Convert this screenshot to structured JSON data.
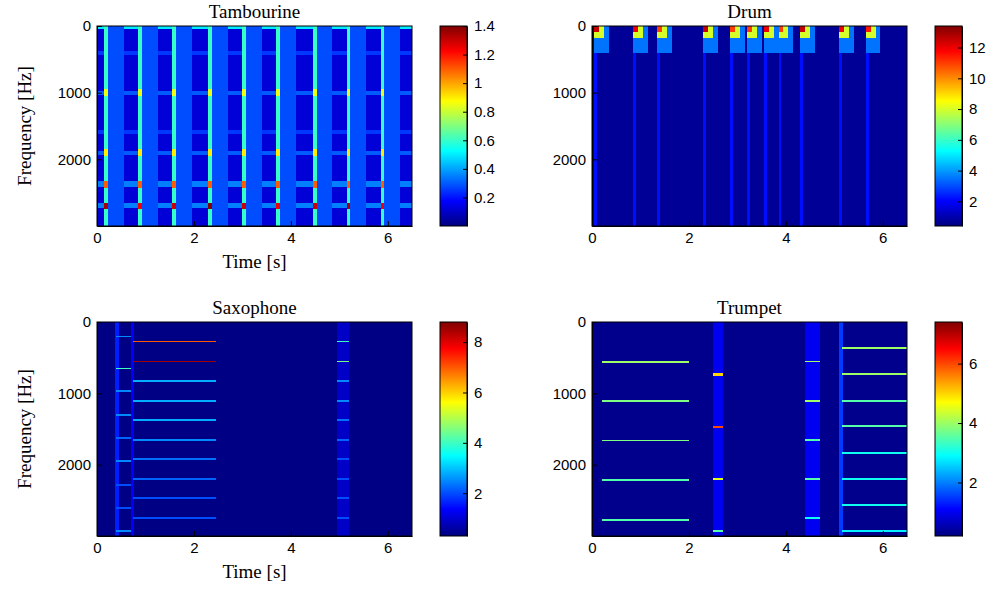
{
  "chart_data": [
    {
      "type": "heatmap",
      "title": "Tambourine",
      "xlabel": "Time [s]",
      "ylabel": "Frequency [Hz]",
      "xlim": [
        0,
        6.5
      ],
      "xticks": [
        0,
        2,
        4,
        6
      ],
      "ylim": [
        0,
        3000
      ],
      "yticks": [
        0,
        1000,
        2000
      ],
      "colorbar": {
        "range": [
          0,
          1.4
        ],
        "ticks": [
          0.2,
          0.4,
          0.6,
          0.8,
          1,
          1.2,
          1.4
        ]
      },
      "background": 0.12,
      "cells": [
        [
          0,
          6.5,
          0,
          40,
          0.5
        ],
        [
          0,
          6.5,
          380,
          430,
          0.25
        ],
        [
          0,
          6.5,
          980,
          1040,
          0.3
        ],
        [
          0,
          6.5,
          1560,
          1620,
          0.25
        ],
        [
          0,
          6.5,
          1880,
          1940,
          0.3
        ],
        [
          0,
          6.5,
          2330,
          2420,
          0.35
        ],
        [
          0,
          6.5,
          2650,
          2730,
          0.35
        ],
        [
          0.15,
          0.55,
          0,
          3000,
          0.28
        ],
        [
          0.15,
          0.23,
          0,
          3000,
          0.6
        ],
        [
          0.15,
          0.23,
          950,
          1050,
          0.85
        ],
        [
          0.15,
          0.23,
          1850,
          1950,
          0.9
        ],
        [
          0.15,
          0.23,
          2330,
          2430,
          1.1
        ],
        [
          0.15,
          0.23,
          2650,
          2750,
          1.35
        ],
        [
          0.85,
          1.25,
          0,
          3000,
          0.28
        ],
        [
          0.85,
          0.93,
          0,
          3000,
          0.6
        ],
        [
          0.85,
          0.93,
          950,
          1050,
          0.85
        ],
        [
          0.85,
          0.93,
          1850,
          1950,
          0.9
        ],
        [
          0.85,
          0.93,
          2330,
          2430,
          1.1
        ],
        [
          0.85,
          0.93,
          2650,
          2750,
          1.25
        ],
        [
          1.55,
          1.95,
          0,
          3000,
          0.28
        ],
        [
          1.55,
          1.63,
          0,
          3000,
          0.6
        ],
        [
          1.55,
          1.63,
          950,
          1050,
          0.85
        ],
        [
          1.55,
          1.63,
          1850,
          1950,
          0.9
        ],
        [
          1.55,
          1.63,
          2330,
          2430,
          1.1
        ],
        [
          1.55,
          1.63,
          2650,
          2750,
          1.3
        ],
        [
          2.3,
          2.7,
          0,
          3000,
          0.28
        ],
        [
          2.3,
          2.38,
          0,
          3000,
          0.6
        ],
        [
          2.3,
          2.38,
          950,
          1050,
          0.85
        ],
        [
          2.3,
          2.38,
          1850,
          1950,
          0.9
        ],
        [
          2.3,
          2.38,
          2330,
          2430,
          1.1
        ],
        [
          2.3,
          2.38,
          2650,
          2750,
          1.4
        ],
        [
          3.0,
          3.4,
          0,
          3000,
          0.28
        ],
        [
          3.0,
          3.08,
          0,
          3000,
          0.6
        ],
        [
          3.0,
          3.08,
          950,
          1050,
          0.85
        ],
        [
          3.0,
          3.08,
          1850,
          1950,
          0.9
        ],
        [
          3.0,
          3.08,
          2330,
          2430,
          1.1
        ],
        [
          3.0,
          3.08,
          2650,
          2750,
          1.3
        ],
        [
          3.7,
          4.1,
          0,
          3000,
          0.28
        ],
        [
          3.7,
          3.78,
          0,
          3000,
          0.6
        ],
        [
          3.7,
          3.78,
          950,
          1050,
          0.85
        ],
        [
          3.7,
          3.78,
          1850,
          1950,
          0.9
        ],
        [
          3.7,
          3.78,
          2330,
          2430,
          1.1
        ],
        [
          3.7,
          3.78,
          2650,
          2750,
          1.25
        ],
        [
          4.45,
          4.85,
          0,
          3000,
          0.28
        ],
        [
          4.45,
          4.53,
          0,
          3000,
          0.6
        ],
        [
          4.45,
          4.53,
          950,
          1050,
          0.85
        ],
        [
          4.45,
          4.53,
          1850,
          1950,
          0.9
        ],
        [
          4.45,
          4.53,
          2330,
          2430,
          1.1
        ],
        [
          4.45,
          4.53,
          2650,
          2750,
          1.3
        ],
        [
          5.15,
          5.55,
          0,
          3000,
          0.28
        ],
        [
          5.15,
          5.23,
          0,
          3000,
          0.6
        ],
        [
          5.15,
          5.23,
          950,
          1050,
          0.85
        ],
        [
          5.15,
          5.23,
          1850,
          1950,
          0.9
        ],
        [
          5.15,
          5.23,
          2330,
          2430,
          1.1
        ],
        [
          5.15,
          5.23,
          2650,
          2750,
          1.35
        ],
        [
          5.85,
          6.25,
          0,
          3000,
          0.28
        ],
        [
          5.85,
          5.93,
          0,
          3000,
          0.6
        ],
        [
          5.85,
          5.93,
          950,
          1050,
          0.85
        ],
        [
          5.85,
          5.93,
          1850,
          1950,
          0.9
        ],
        [
          5.85,
          5.93,
          2330,
          2430,
          1.1
        ],
        [
          5.85,
          5.93,
          2650,
          2750,
          1.25
        ]
      ]
    },
    {
      "type": "heatmap",
      "title": "Drum",
      "xlim": [
        0,
        6.5
      ],
      "xticks": [
        0,
        2,
        4,
        6
      ],
      "ylim": [
        0,
        3000
      ],
      "yticks": [
        0,
        1000,
        2000
      ],
      "colorbar": {
        "range": [
          0.4,
          13.4
        ],
        "ticks": [
          2,
          4,
          6,
          8,
          10,
          12
        ]
      },
      "background": 0.7,
      "cells": [
        [
          0.05,
          0.11,
          0,
          3000,
          2.2
        ],
        [
          0.05,
          0.35,
          0,
          400,
          3.5
        ],
        [
          0.05,
          0.25,
          0,
          180,
          8
        ],
        [
          0.05,
          0.15,
          0,
          90,
          12.5
        ],
        [
          0.85,
          0.91,
          0,
          3000,
          2.2
        ],
        [
          0.85,
          1.15,
          0,
          400,
          3.5
        ],
        [
          0.85,
          1.05,
          0,
          180,
          8
        ],
        [
          0.85,
          0.95,
          0,
          90,
          12
        ],
        [
          1.35,
          1.41,
          0,
          3000,
          2.2
        ],
        [
          1.35,
          1.65,
          0,
          400,
          3.5
        ],
        [
          1.35,
          1.55,
          0,
          180,
          8
        ],
        [
          1.35,
          1.45,
          0,
          90,
          11
        ],
        [
          2.3,
          2.36,
          0,
          3000,
          2.2
        ],
        [
          2.3,
          2.6,
          0,
          400,
          3.5
        ],
        [
          2.3,
          2.5,
          0,
          180,
          8
        ],
        [
          2.3,
          2.4,
          0,
          90,
          12.5
        ],
        [
          2.85,
          2.91,
          0,
          3000,
          2.2
        ],
        [
          2.85,
          3.15,
          0,
          400,
          3.5
        ],
        [
          2.85,
          3.05,
          0,
          180,
          8
        ],
        [
          2.85,
          2.95,
          0,
          90,
          11
        ],
        [
          3.2,
          3.26,
          0,
          3000,
          2.2
        ],
        [
          3.2,
          3.5,
          0,
          400,
          3.5
        ],
        [
          3.2,
          3.4,
          0,
          180,
          8
        ],
        [
          3.2,
          3.3,
          0,
          90,
          11
        ],
        [
          3.55,
          3.61,
          0,
          3000,
          2.2
        ],
        [
          3.55,
          3.85,
          0,
          400,
          3.5
        ],
        [
          3.55,
          3.75,
          0,
          180,
          8
        ],
        [
          3.55,
          3.65,
          0,
          90,
          12
        ],
        [
          3.85,
          3.91,
          0,
          3000,
          2.2
        ],
        [
          3.85,
          4.15,
          0,
          400,
          3.5
        ],
        [
          3.85,
          4.05,
          0,
          180,
          8
        ],
        [
          3.85,
          3.95,
          0,
          90,
          11
        ],
        [
          4.3,
          4.36,
          0,
          3000,
          2.2
        ],
        [
          4.3,
          4.6,
          0,
          400,
          3.5
        ],
        [
          4.3,
          4.5,
          0,
          180,
          8
        ],
        [
          4.3,
          4.4,
          0,
          90,
          12.5
        ],
        [
          5.1,
          5.16,
          0,
          3000,
          2.2
        ],
        [
          5.1,
          5.4,
          0,
          400,
          3.5
        ],
        [
          5.1,
          5.3,
          0,
          180,
          8
        ],
        [
          5.1,
          5.2,
          0,
          90,
          12
        ],
        [
          5.65,
          5.71,
          0,
          3000,
          2.2
        ],
        [
          5.65,
          5.95,
          0,
          400,
          3.5
        ],
        [
          5.65,
          5.85,
          0,
          180,
          8
        ],
        [
          5.65,
          5.75,
          0,
          90,
          11.5
        ]
      ]
    },
    {
      "type": "heatmap",
      "title": "Saxophone",
      "xlabel": "Time [s]",
      "ylabel": "Frequency [Hz]",
      "xlim": [
        0,
        6.5
      ],
      "xticks": [
        0,
        2,
        4,
        6
      ],
      "ylim": [
        0,
        3000
      ],
      "yticks": [
        0,
        1000,
        2000
      ],
      "colorbar": {
        "range": [
          0.3,
          8.8
        ],
        "ticks": [
          2,
          4,
          6,
          8
        ]
      },
      "background": 0.35,
      "cells": [
        [
          0.38,
          0.45,
          0,
          3000,
          1.6
        ],
        [
          0.4,
          0.72,
          190,
          215,
          2.5
        ],
        [
          0.4,
          0.72,
          640,
          665,
          4
        ],
        [
          0.4,
          0.72,
          960,
          985,
          2.5
        ],
        [
          0.4,
          0.72,
          1290,
          1315,
          2.5
        ],
        [
          0.4,
          0.72,
          1610,
          1635,
          2.2
        ],
        [
          0.4,
          0.72,
          1940,
          1965,
          2.5
        ],
        [
          0.4,
          0.72,
          2270,
          2295,
          2
        ],
        [
          0.4,
          0.72,
          2600,
          2625,
          2
        ],
        [
          0.4,
          0.72,
          2920,
          2945,
          2.5
        ],
        [
          0.7,
          0.76,
          0,
          3000,
          1.3
        ],
        [
          0.75,
          2.45,
          260,
          285,
          7
        ],
        [
          0.75,
          2.45,
          540,
          565,
          8.5
        ],
        [
          0.75,
          2.45,
          810,
          835,
          2.8
        ],
        [
          0.75,
          2.45,
          1090,
          1115,
          2.8
        ],
        [
          0.75,
          2.45,
          1360,
          1385,
          2.8
        ],
        [
          0.75,
          2.45,
          1640,
          1665,
          2.5
        ],
        [
          0.75,
          2.45,
          1910,
          1935,
          2.3
        ],
        [
          0.75,
          2.45,
          2190,
          2215,
          2.2
        ],
        [
          0.75,
          2.45,
          2460,
          2485,
          2
        ],
        [
          0.75,
          2.45,
          2740,
          2765,
          2
        ],
        [
          4.95,
          5.2,
          0,
          3000,
          0.9
        ],
        [
          4.95,
          5.2,
          260,
          285,
          4
        ],
        [
          4.95,
          5.2,
          540,
          565,
          4.5
        ],
        [
          4.95,
          5.2,
          810,
          835,
          2.5
        ],
        [
          4.95,
          5.2,
          1090,
          1115,
          2.5
        ],
        [
          4.95,
          5.2,
          1360,
          1385,
          2.3
        ],
        [
          4.95,
          5.2,
          1640,
          1665,
          2.2
        ],
        [
          4.95,
          5.2,
          1910,
          1935,
          2
        ],
        [
          4.95,
          5.2,
          2190,
          2215,
          2
        ],
        [
          4.95,
          5.2,
          2460,
          2485,
          2
        ],
        [
          4.95,
          5.2,
          2740,
          2765,
          2
        ]
      ]
    },
    {
      "type": "heatmap",
      "title": "Trumpet",
      "xlim": [
        0,
        6.5
      ],
      "xticks": [
        0,
        2,
        4,
        6
      ],
      "ylim": [
        0,
        3000
      ],
      "yticks": [
        0,
        1000,
        2000
      ],
      "colorbar": {
        "range": [
          0.2,
          7.4
        ],
        "ticks": [
          2,
          4,
          6
        ]
      },
      "background": 0.3,
      "cells": [
        [
          0.2,
          2.0,
          545,
          570,
          4
        ],
        [
          0.2,
          2.0,
          1100,
          1125,
          3.8
        ],
        [
          0.2,
          2.0,
          1650,
          1675,
          3.8
        ],
        [
          0.2,
          2.0,
          2200,
          2225,
          3.5
        ],
        [
          0.2,
          2.0,
          2760,
          2785,
          3.5
        ],
        [
          2.5,
          2.7,
          0,
          3000,
          1.0
        ],
        [
          2.5,
          2.7,
          720,
          750,
          5
        ],
        [
          2.5,
          2.7,
          1460,
          1490,
          6
        ],
        [
          2.5,
          2.7,
          2190,
          2220,
          4.5
        ],
        [
          2.5,
          2.7,
          2920,
          2950,
          3.5
        ],
        [
          4.4,
          4.7,
          0,
          3000,
          1.0
        ],
        [
          4.4,
          4.7,
          540,
          565,
          4
        ],
        [
          4.4,
          4.7,
          1090,
          1115,
          4
        ],
        [
          4.4,
          4.7,
          1640,
          1665,
          3.5
        ],
        [
          4.4,
          4.7,
          2190,
          2215,
          3.5
        ],
        [
          4.4,
          4.7,
          2740,
          2765,
          3
        ],
        [
          5.1,
          5.18,
          0,
          3000,
          1.5
        ],
        [
          5.15,
          6.5,
          355,
          380,
          4
        ],
        [
          5.15,
          6.5,
          720,
          745,
          4
        ],
        [
          5.15,
          6.5,
          1090,
          1115,
          3.5
        ],
        [
          5.15,
          6.5,
          1450,
          1475,
          3.5
        ],
        [
          5.15,
          6.5,
          1820,
          1845,
          3
        ],
        [
          5.15,
          6.5,
          2190,
          2215,
          3
        ],
        [
          5.15,
          6.5,
          2550,
          2575,
          3
        ],
        [
          5.15,
          6.5,
          2920,
          2945,
          2.8
        ]
      ]
    }
  ]
}
